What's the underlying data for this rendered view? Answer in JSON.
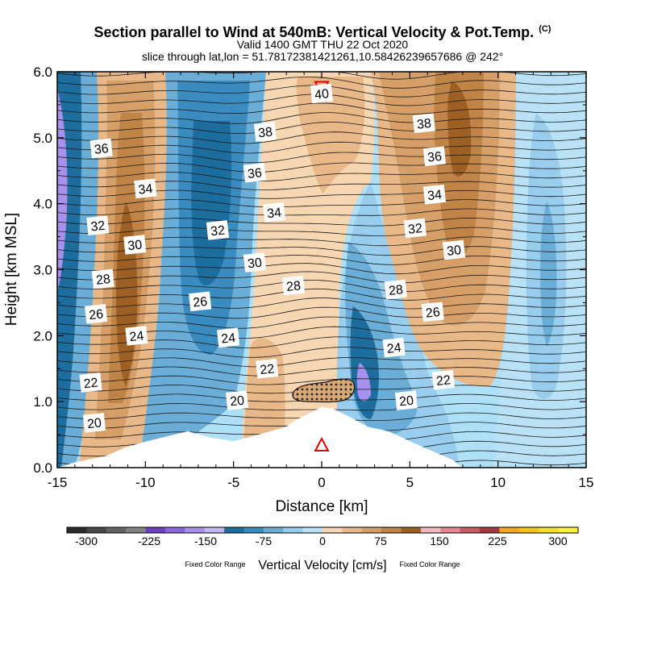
{
  "header": {
    "title": "Section parallel to Wind at 540mB: Vertical Velocity & Pot.Temp.",
    "corner": "(C)",
    "valid": "Valid 1400 GMT THU 22 Oct 2020",
    "slice": "slice through lat,lon = 51.78172381421261,10.58426239657686 @ 242°"
  },
  "chart_data": {
    "type": "heatmap",
    "xlabel": "Distance [km]",
    "ylabel": "Height [km MSL]",
    "xlim": [
      -15,
      15
    ],
    "ylim": [
      0,
      6
    ],
    "x_ticks": [
      "-15",
      "-10",
      "-5",
      "0",
      "5",
      "10",
      "15"
    ],
    "y_ticks": [
      "0.0",
      "1.0",
      "2.0",
      "3.0",
      "4.0",
      "5.0",
      "6.0"
    ],
    "shading_field": "Vertical Velocity [cm/s]",
    "contour_field": "Potential temperature",
    "colorbar": {
      "label": "Vertical Velocity [cm/s]",
      "side_note_left": "Fixed Color Range",
      "side_note_right": "Fixed Color Range",
      "tick_labels": [
        "-300",
        "-225",
        "-150",
        "-75",
        "0",
        "75",
        "150",
        "225",
        "300"
      ],
      "colors": [
        "#2b2b2b",
        "#474747",
        "#646464",
        "#828282",
        "#6a3fc0",
        "#8a68db",
        "#a791ec",
        "#c3b8f7",
        "#1d6d9e",
        "#3a8bc0",
        "#6aaed8",
        "#98cdee",
        "#b9e2f7",
        "#f7d6b2",
        "#e9b888",
        "#d69f68",
        "#bf8446",
        "#9e5f22",
        "#f5b7c0",
        "#e5878f",
        "#c85c64",
        "#a83840",
        "#f4a623",
        "#f7c518",
        "#f9df2c",
        "#fdf33f"
      ]
    },
    "velocity_bands": [
      {
        "x_range": [
          -15,
          -14
        ],
        "vertical_velocity": -150
      },
      {
        "x_range": [
          -14,
          -12.5
        ],
        "vertical_velocity": -75
      },
      {
        "x_range": [
          -12.5,
          -9
        ],
        "vertical_velocity": 75
      },
      {
        "x_range": [
          -9,
          -4
        ],
        "vertical_velocity": -75
      },
      {
        "x_range": [
          -4,
          2
        ],
        "vertical_velocity": 25
      },
      {
        "x_range": [
          1,
          4.5
        ],
        "vertical_velocity": -150
      },
      {
        "x_range": [
          4,
          10
        ],
        "vertical_velocity": 75
      },
      {
        "x_range": [
          10,
          15
        ],
        "vertical_velocity": -25
      }
    ],
    "theta_labels": [
      {
        "text": "20",
        "x": -12.9,
        "y": 0.68
      },
      {
        "text": "22",
        "x": -13.1,
        "y": 1.29
      },
      {
        "text": "24",
        "x": -10.5,
        "y": 2.0
      },
      {
        "text": "26",
        "x": -12.8,
        "y": 2.33
      },
      {
        "text": "28",
        "x": -12.4,
        "y": 2.86
      },
      {
        "text": "30",
        "x": -10.6,
        "y": 3.38
      },
      {
        "text": "32",
        "x": -12.7,
        "y": 3.67
      },
      {
        "text": "34",
        "x": -10.0,
        "y": 4.23
      },
      {
        "text": "36",
        "x": -12.5,
        "y": 4.84
      },
      {
        "text": "38",
        "x": -3.2,
        "y": 5.09
      },
      {
        "text": "36",
        "x": -3.8,
        "y": 4.47
      },
      {
        "text": "34",
        "x": -2.7,
        "y": 3.87
      },
      {
        "text": "32",
        "x": -5.9,
        "y": 3.6
      },
      {
        "text": "30",
        "x": -3.8,
        "y": 3.11
      },
      {
        "text": "28",
        "x": -1.6,
        "y": 2.76
      },
      {
        "text": "26",
        "x": -6.9,
        "y": 2.52
      },
      {
        "text": "24",
        "x": -5.3,
        "y": 1.97
      },
      {
        "text": "22",
        "x": -3.1,
        "y": 1.5
      },
      {
        "text": "20",
        "x": -4.8,
        "y": 1.02
      },
      {
        "text": "40",
        "x": 0.0,
        "y": 5.67
      },
      {
        "text": "38",
        "x": 5.8,
        "y": 5.22
      },
      {
        "text": "36",
        "x": 6.4,
        "y": 4.72
      },
      {
        "text": "34",
        "x": 6.4,
        "y": 4.14
      },
      {
        "text": "32",
        "x": 5.3,
        "y": 3.63
      },
      {
        "text": "30",
        "x": 7.5,
        "y": 3.3
      },
      {
        "text": "28",
        "x": 4.2,
        "y": 2.7
      },
      {
        "text": "26",
        "x": 6.3,
        "y": 2.36
      },
      {
        "text": "24",
        "x": 4.1,
        "y": 1.82
      },
      {
        "text": "22",
        "x": 6.9,
        "y": 1.33
      },
      {
        "text": "20",
        "x": 4.8,
        "y": 1.02
      }
    ],
    "terrain_profile": [
      {
        "x": -15.0,
        "y": 0.0
      },
      {
        "x": -14.0,
        "y": 0.08
      },
      {
        "x": -12.2,
        "y": 0.18
      },
      {
        "x": -11.2,
        "y": 0.3
      },
      {
        "x": -10.2,
        "y": 0.38
      },
      {
        "x": -9.0,
        "y": 0.46
      },
      {
        "x": -7.6,
        "y": 0.55
      },
      {
        "x": -6.2,
        "y": 0.45
      },
      {
        "x": -5.0,
        "y": 0.4
      },
      {
        "x": -3.6,
        "y": 0.5
      },
      {
        "x": -2.0,
        "y": 0.62
      },
      {
        "x": -1.5,
        "y": 0.72
      },
      {
        "x": -0.5,
        "y": 0.85
      },
      {
        "x": 0.0,
        "y": 0.92
      },
      {
        "x": 0.6,
        "y": 0.9
      },
      {
        "x": 1.5,
        "y": 0.78
      },
      {
        "x": 2.6,
        "y": 0.62
      },
      {
        "x": 3.8,
        "y": 0.55
      },
      {
        "x": 5.0,
        "y": 0.4
      },
      {
        "x": 6.2,
        "y": 0.26
      },
      {
        "x": 7.4,
        "y": 0.12
      },
      {
        "x": 8.0,
        "y": 0.0
      }
    ],
    "marker_triangle_bottom": {
      "x": 0.0,
      "y": 0.33
    },
    "marker_triangle_top": {
      "x": 0.0,
      "y": 5.75
    }
  }
}
